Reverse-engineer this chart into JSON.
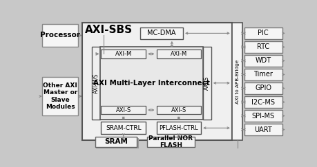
{
  "title": "AXI-SBS",
  "peripherals": [
    "PIC",
    "RTC",
    "WDT",
    "Timer",
    "GPIO",
    "I2C-MS",
    "SPI-MS",
    "UART"
  ],
  "bg_color": "#c8c8c8",
  "box_face": "#f2f2f2",
  "box_edge": "#666666",
  "inter_face": "#e0e0e0",
  "arrow_color": "#888888"
}
